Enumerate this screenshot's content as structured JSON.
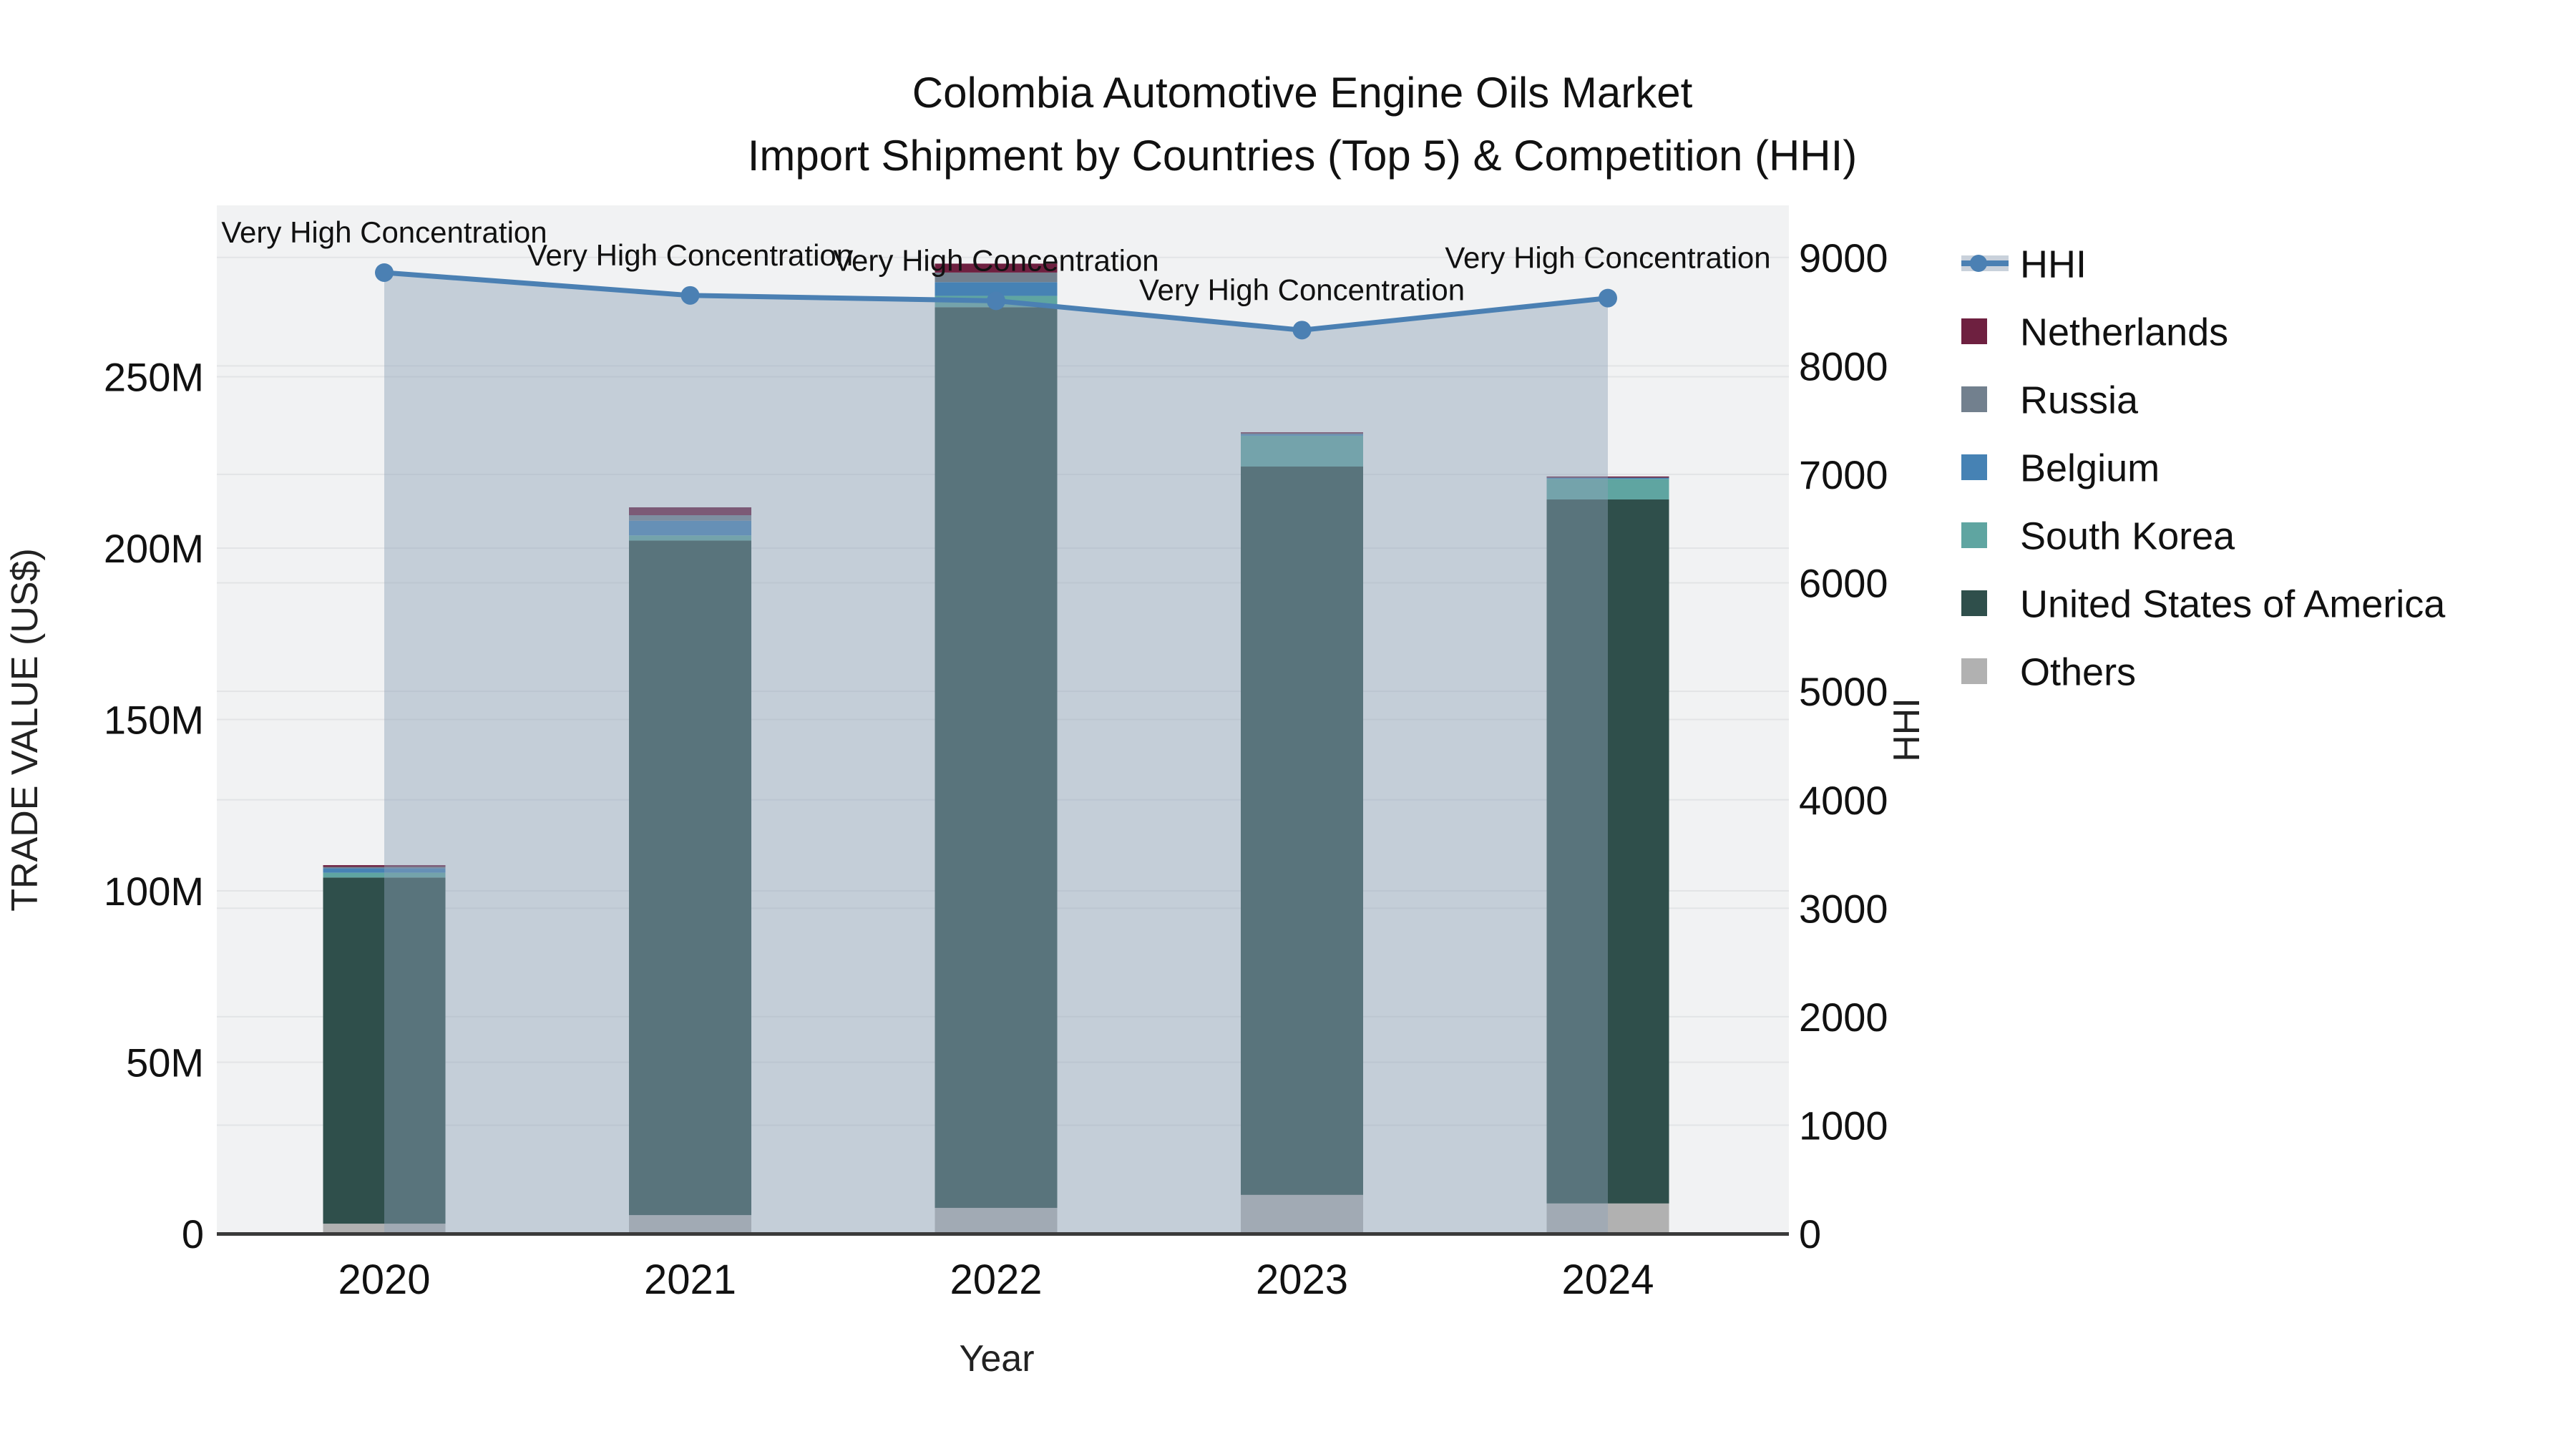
{
  "title": {
    "line1": "Colombia Automotive Engine Oils Market",
    "line2": "Import Shipment by Countries (Top 5) & Competition (HHI)"
  },
  "axes": {
    "x": {
      "title": "Year",
      "categories": [
        "2020",
        "2021",
        "2022",
        "2023",
        "2024"
      ]
    },
    "y_left": {
      "title": "TRADE VALUE (US$)",
      "tick_labels": [
        "0",
        "50M",
        "100M",
        "150M",
        "200M",
        "250M"
      ],
      "tick_values": [
        0,
        50,
        100,
        150,
        200,
        250
      ],
      "range": [
        0,
        300
      ],
      "unit": "million US$"
    },
    "y_right": {
      "title": "HHI",
      "tick_labels": [
        "0",
        "1000",
        "2000",
        "3000",
        "4000",
        "5000",
        "6000",
        "7000",
        "8000",
        "9000"
      ],
      "tick_values": [
        0,
        1000,
        2000,
        3000,
        4000,
        5000,
        6000,
        7000,
        8000,
        9000
      ],
      "range": [
        0,
        9480
      ]
    }
  },
  "legend": {
    "items": [
      {
        "label": "HHI",
        "type": "line",
        "color": "#4B80B3"
      },
      {
        "label": "Netherlands",
        "type": "swatch",
        "color": "#6E2040"
      },
      {
        "label": "Russia",
        "type": "swatch",
        "color": "#72808E"
      },
      {
        "label": "Belgium",
        "type": "swatch",
        "color": "#4682B4"
      },
      {
        "label": "South Korea",
        "type": "swatch",
        "color": "#5FA5A1"
      },
      {
        "label": "United States of America",
        "type": "swatch",
        "color": "#2F4F4B"
      },
      {
        "label": "Others",
        "type": "swatch",
        "color": "#B1B1B1"
      }
    ]
  },
  "annotation_label": "Very High Concentration",
  "chart_data": {
    "type": "bar+line",
    "title": "Colombia Automotive Engine Oils Market — Import Shipment by Countries (Top 5) & Competition (HHI)",
    "xlabel": "Year",
    "ylabel_left": "TRADE VALUE (US$)",
    "ylabel_right": "HHI",
    "categories": [
      "2020",
      "2021",
      "2022",
      "2023",
      "2024"
    ],
    "bar_unit": "million US$",
    "bar_series": [
      {
        "name": "Netherlands",
        "color": "#6E2040",
        "values": [
          0.5,
          2.3,
          2.6,
          0.3,
          0.1
        ]
      },
      {
        "name": "Russia",
        "color": "#72808E",
        "values": [
          0.4,
          1.6,
          2.8,
          0.2,
          0.1
        ]
      },
      {
        "name": "Belgium",
        "color": "#4682B4",
        "values": [
          1.3,
          4.3,
          4.0,
          0.5,
          0.5
        ]
      },
      {
        "name": "South Korea",
        "color": "#5FA5A1",
        "values": [
          1.4,
          1.5,
          3.3,
          9.0,
          6.0
        ]
      },
      {
        "name": "United States of America",
        "color": "#2F4F4B",
        "values": [
          101.0,
          196.8,
          262.8,
          212.5,
          205.4
        ]
      },
      {
        "name": "Others",
        "color": "#B1B1B1",
        "values": [
          2.9,
          5.4,
          7.5,
          11.3,
          8.8
        ]
      }
    ],
    "stack_order_bottom_to_top": [
      "Others",
      "United States of America",
      "South Korea",
      "Belgium",
      "Russia",
      "Netherlands"
    ],
    "bar_totals": [
      107.5,
      211.9,
      283.0,
      233.8,
      220.9
    ],
    "line_series": {
      "name": "HHI",
      "axis": "right",
      "color": "#4B80B3",
      "fill_color": "rgba(141,161,184,0.45)",
      "values": [
        8860,
        8650,
        8600,
        8330,
        8625
      ],
      "point_annotations": [
        "Very High Concentration",
        "Very High Concentration",
        "Very High Concentration",
        "Very High Concentration",
        "Very High Concentration"
      ]
    },
    "left_axis_range": [
      0,
      300
    ],
    "right_axis_range": [
      0,
      9480
    ],
    "grid": true,
    "legend_position": "right"
  },
  "colors": {
    "plot_bg": "#F1F2F3",
    "page_bg": "#FFFFFF",
    "grid": "#E2E4E6",
    "axis_line": "#3A3A3A"
  }
}
